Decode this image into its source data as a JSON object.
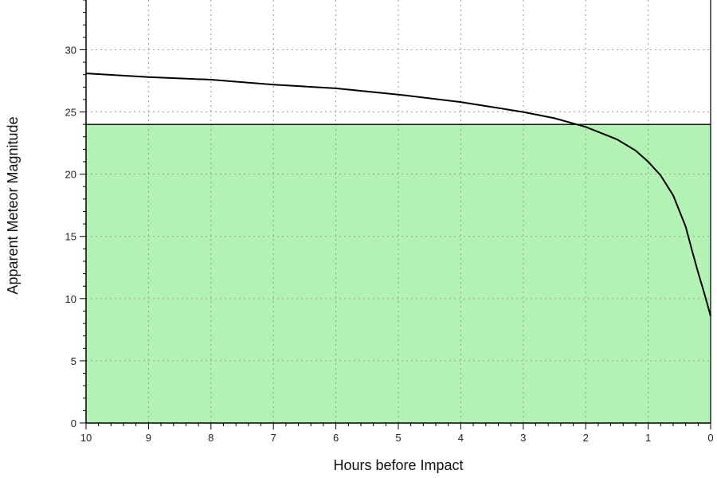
{
  "chart_data": {
    "type": "line",
    "title": "",
    "xlabel": "Hours before Impact",
    "ylabel": "Apparent Meteor Magnitude",
    "xlim": [
      10,
      0
    ],
    "ylim": [
      0,
      34
    ],
    "x_reversed": true,
    "x_ticks": [
      10,
      9,
      8,
      7,
      6,
      5,
      4,
      3,
      2,
      1,
      0
    ],
    "y_ticks": [
      0,
      5,
      10,
      15,
      20,
      25,
      30
    ],
    "grid": true,
    "legend": "none",
    "threshold": {
      "y": 24,
      "fill_below_color": "#b2f2b2"
    },
    "series": [
      {
        "x": [
          10,
          9,
          8,
          7,
          6,
          5,
          4,
          3,
          2.5,
          2,
          1.5,
          1.2,
          1.0,
          0.8,
          0.6,
          0.4,
          0.3,
          0.2,
          0.1,
          0.05,
          0
        ],
        "y": [
          28.1,
          27.8,
          27.6,
          27.2,
          26.9,
          26.4,
          25.8,
          25.0,
          24.5,
          23.8,
          22.8,
          21.9,
          21.0,
          19.9,
          18.3,
          15.8,
          13.9,
          12.1,
          10.4,
          9.5,
          8.6
        ],
        "color": "#000000"
      }
    ]
  }
}
